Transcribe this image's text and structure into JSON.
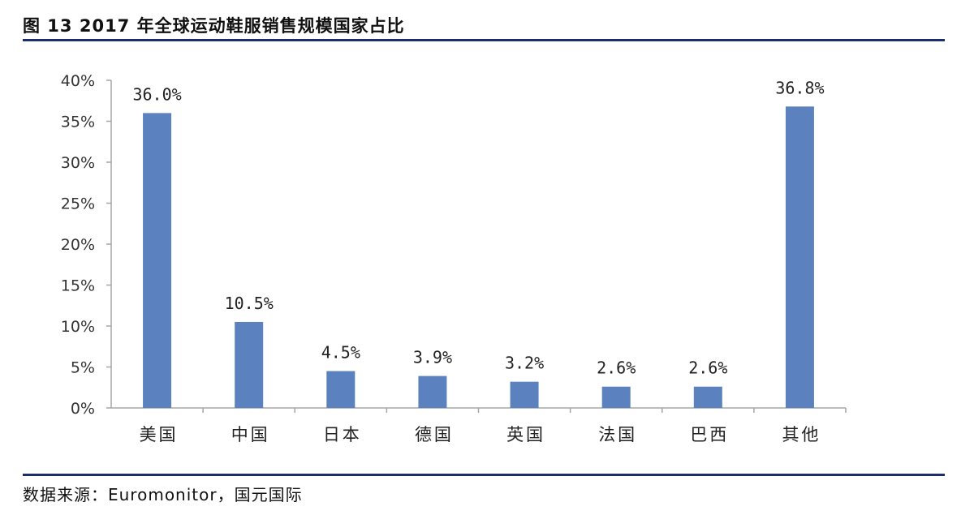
{
  "title": "图 13 2017 年全球运动鞋服销售规模国家占比",
  "source": "数据来源：Euromonitor，国元国际",
  "colors": {
    "bar": "#5b82be",
    "axis": "#a6a6a6",
    "rule": "#1a2e6e"
  },
  "chart_data": {
    "type": "bar",
    "title": "",
    "xlabel": "",
    "ylabel": "",
    "categories": [
      "美国",
      "中国",
      "日本",
      "德国",
      "英国",
      "法国",
      "巴西",
      "其他"
    ],
    "values": [
      36.0,
      10.5,
      4.5,
      3.9,
      3.2,
      2.6,
      2.6,
      36.8
    ],
    "value_labels": [
      "36.0%",
      "10.5%",
      "4.5%",
      "3.9%",
      "3.2%",
      "2.6%",
      "2.6%",
      "36.8%"
    ],
    "y_ticks": [
      0,
      5,
      10,
      15,
      20,
      25,
      30,
      35,
      40
    ],
    "y_tick_labels": [
      "0%",
      "5%",
      "10%",
      "15%",
      "20%",
      "25%",
      "30%",
      "35%",
      "40%"
    ],
    "ylim": [
      0,
      40
    ],
    "grid": false,
    "legend": "none"
  }
}
